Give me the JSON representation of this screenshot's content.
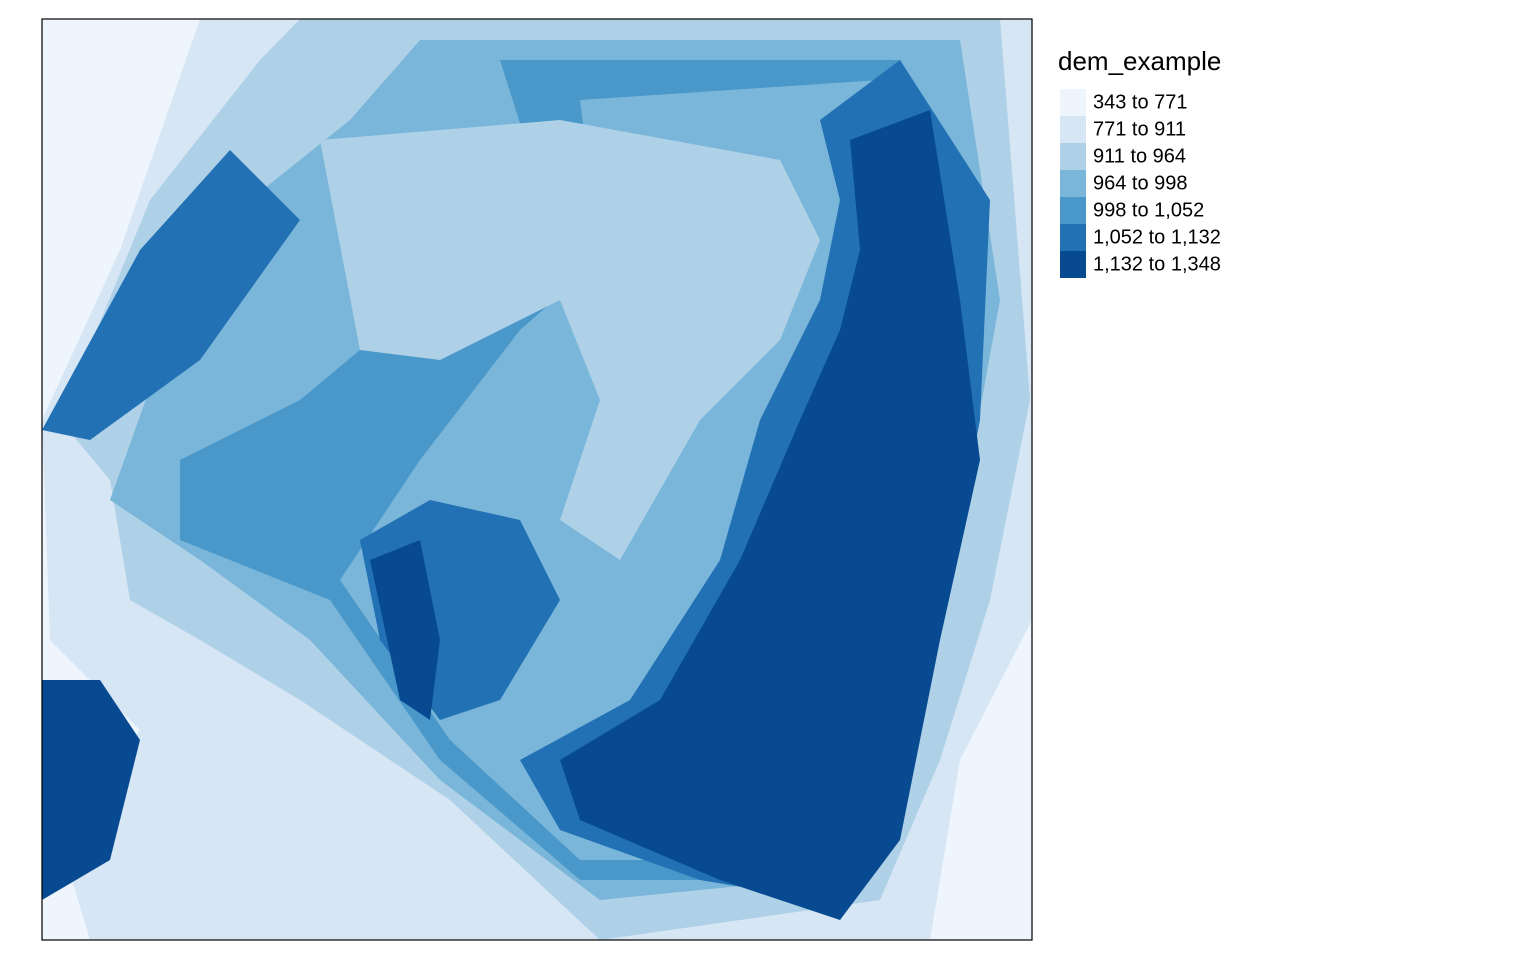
{
  "legend": {
    "title": "dem_example",
    "classes": [
      {
        "label": "343 to 771",
        "color": "#eef5fc"
      },
      {
        "label": "771 to 911",
        "color": "#d6e6f4"
      },
      {
        "label": "911 to 964",
        "color": "#aed1e7"
      },
      {
        "label": "964 to 998",
        "color": "#7ab6d9"
      },
      {
        "label": "998 to 1,052",
        "color": "#4a98c9"
      },
      {
        "label": "1,052 to 1,132",
        "color": "#2271b5"
      },
      {
        "label": "1,132 to 1,348",
        "color": "#084a91"
      }
    ]
  }
}
